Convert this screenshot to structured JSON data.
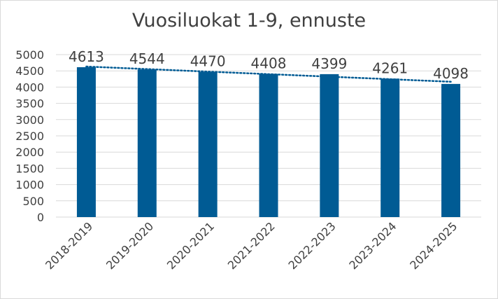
{
  "chart_data": {
    "type": "bar",
    "title": "Vuosiluokat 1-9, ennuste",
    "categories": [
      "2018-2019",
      "2019-2020",
      "2020-2021",
      "2021-2022",
      "2022-2023",
      "2023-2024",
      "2024-2025"
    ],
    "values": [
      4613,
      4544,
      4470,
      4408,
      4399,
      4261,
      4098
    ],
    "data_labels": [
      "4613",
      "4544",
      "4470",
      "4408",
      "4399",
      "4261",
      "4098"
    ],
    "ylim": [
      0,
      5000
    ],
    "yticks": [
      0,
      500,
      1000,
      1500,
      2000,
      2500,
      3000,
      3500,
      4000,
      4500,
      5000
    ],
    "grid": true,
    "trendline": "linear, dotted",
    "colors": {
      "bar": "#005b94",
      "trend": "#005b94",
      "grid": "#d9d9d9",
      "text": "#404040"
    }
  }
}
